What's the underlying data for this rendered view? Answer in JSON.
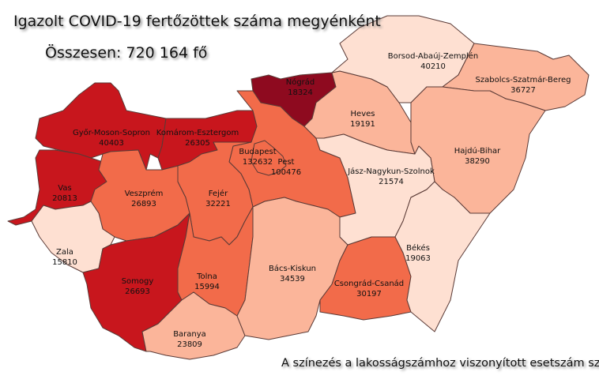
{
  "title": "Igazolt COVID-19 fertőzöttek száma megyénként",
  "total": "Összesen: 720 164 fő",
  "note": "A színezés a lakosságszámhoz viszonyított esetszám szerint",
  "regions": [
    {
      "name": "Győr-Moson-Sopron",
      "cases": "40403",
      "color": "#c8161d"
    },
    {
      "name": "Komárom-Esztergom",
      "cases": "26305",
      "color": "#c8161d"
    },
    {
      "name": "Nógrád",
      "cases": "18324",
      "color": "#8e0a1f"
    },
    {
      "name": "Pest",
      "cases": "100476",
      "color": "#f26b4a"
    },
    {
      "name": "Budapest",
      "cases": "132632",
      "color": "#f26b4a"
    },
    {
      "name": "Vas",
      "cases": "20813",
      "color": "#c8161d"
    },
    {
      "name": "Veszprém",
      "cases": "26893",
      "color": "#f26b4a"
    },
    {
      "name": "Fejér",
      "cases": "32221",
      "color": "#f26b4a"
    },
    {
      "name": "Zala",
      "cases": "15810",
      "color": "#fee0d2"
    },
    {
      "name": "Somogy",
      "cases": "26693",
      "color": "#c8161d"
    },
    {
      "name": "Tolna",
      "cases": "15994",
      "color": "#f26b4a"
    },
    {
      "name": "Baranya",
      "cases": "23809",
      "color": "#fbb59a"
    },
    {
      "name": "Bács-Kiskun",
      "cases": "34539",
      "color": "#fbb59a"
    },
    {
      "name": "Csongrád-Csanád",
      "cases": "30197",
      "color": "#f26b4a"
    },
    {
      "name": "Heves",
      "cases": "19191",
      "color": "#fbb59a"
    },
    {
      "name": "Borsod-Abaúj-Zemplén",
      "cases": "40210",
      "color": "#fee0d2"
    },
    {
      "name": "Szabolcs-Szatmár-Bereg",
      "cases": "36727",
      "color": "#fbb59a"
    },
    {
      "name": "Hajdú-Bihar",
      "cases": "38290",
      "color": "#fbb59a"
    },
    {
      "name": "Jász-Nagykun-Szolnok",
      "cases": "21574",
      "color": "#fee0d2"
    },
    {
      "name": "Békés",
      "cases": "19063",
      "color": "#fee0d2"
    }
  ]
}
